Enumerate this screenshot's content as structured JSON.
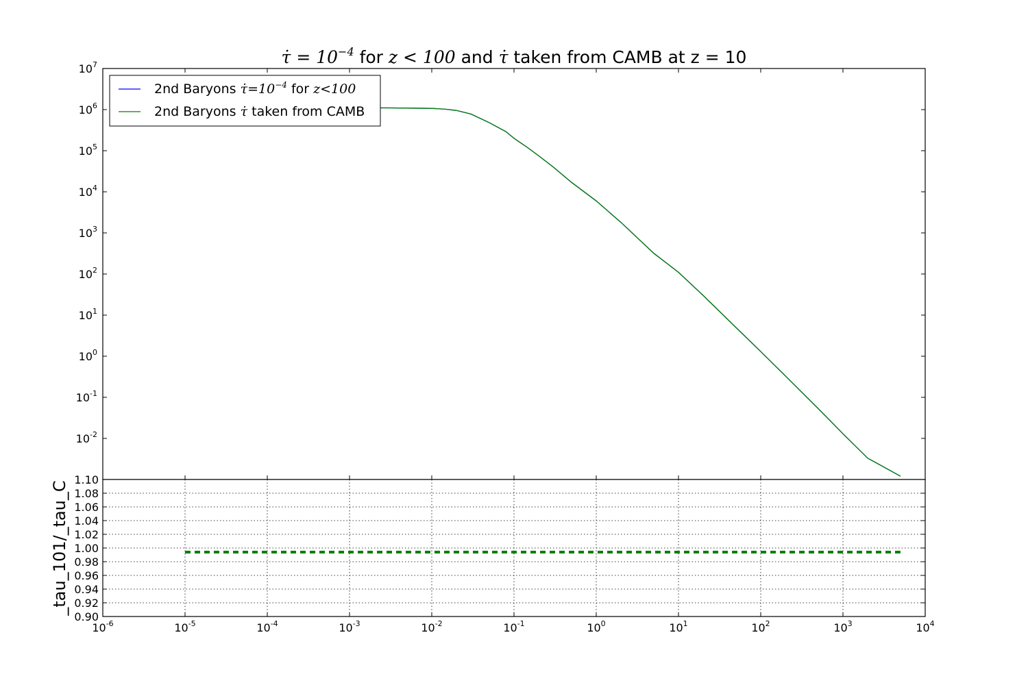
{
  "chart_data": [
    {
      "type": "line",
      "title_parts": {
        "sym": "τ̇",
        "eq": " = 10",
        "exp": "−4",
        "mid1": " for ",
        "z": "z",
        "cond": " < 100",
        "mid2": " and ",
        "sym2": "τ̇",
        "tail": "  taken from CAMB at z = 10"
      },
      "x_scale": "log",
      "y_scale": "log",
      "xlim": [
        1e-06,
        10000.0
      ],
      "ylim": [
        0.001,
        10000000.0
      ],
      "y_tick_exponents": [
        "7",
        "6",
        "5",
        "4",
        "3",
        "2",
        "1",
        "0",
        "-1",
        "-2"
      ],
      "y_tick_values": [
        10000000.0,
        1000000.0,
        100000.0,
        10000.0,
        1000.0,
        100.0,
        10,
        1,
        0.1,
        0.01
      ],
      "legend_position": "upper-left",
      "legend": [
        {
          "name_parts": {
            "a": "2nd Baryons ",
            "b": "τ̇",
            "c": "=10",
            "d": "−4",
            "e": " for ",
            "f": "z",
            "g": "<100"
          },
          "color": "#0000ff"
        },
        {
          "name_parts": {
            "a": "2nd Baryons ",
            "b": "τ̇",
            "c": " taken from CAMB"
          },
          "color": "#008000"
        }
      ],
      "series": [
        {
          "color": "#0000ff",
          "x": [
            1e-05,
            3e-05,
            0.0001,
            0.0003,
            0.001,
            0.003,
            0.005,
            0.01,
            0.015,
            0.02,
            0.03,
            0.05,
            0.08,
            0.1,
            0.15,
            0.2,
            0.3,
            0.5,
            1,
            2,
            5,
            10,
            20,
            50,
            100,
            200,
            500,
            1000,
            2000,
            5000
          ],
          "y": [
            1100000,
            1100000,
            1100000,
            1100000,
            1100000,
            1100000,
            1090000,
            1070000,
            1020000,
            950000,
            780000,
            480000,
            290000,
            200000,
            115000,
            75000,
            40000,
            17000,
            6000,
            1800,
            320,
            110,
            30,
            5,
            1.3,
            0.33,
            0.053,
            0.013,
            0.0033,
            0.0012
          ]
        },
        {
          "color": "#008000",
          "x": [
            1e-05,
            3e-05,
            0.0001,
            0.0003,
            0.001,
            0.003,
            0.005,
            0.01,
            0.015,
            0.02,
            0.03,
            0.05,
            0.08,
            0.1,
            0.15,
            0.2,
            0.3,
            0.5,
            1,
            2,
            5,
            10,
            20,
            50,
            100,
            200,
            500,
            1000,
            2000,
            5000
          ],
          "y": [
            1100000,
            1100000,
            1100000,
            1100000,
            1100000,
            1100000,
            1090000,
            1070000,
            1020000,
            950000,
            780000,
            480000,
            290000,
            200000,
            115000,
            75000,
            40000,
            17000,
            6000,
            1800,
            320,
            110,
            30,
            5,
            1.3,
            0.33,
            0.053,
            0.013,
            0.0033,
            0.0012
          ]
        }
      ]
    },
    {
      "type": "line",
      "ylabel": "_tau_101/_tau_C",
      "x_scale": "log",
      "xlim": [
        1e-06,
        10000.0
      ],
      "ylim": [
        0.9,
        1.1
      ],
      "y_ticks": [
        "1.10",
        "1.08",
        "1.06",
        "1.04",
        "1.02",
        "1.00",
        "0.98",
        "0.96",
        "0.94",
        "0.92",
        "0.90"
      ],
      "x_tick_exponents": [
        "-6",
        "-5",
        "-4",
        "-3",
        "-2",
        "-1",
        "0",
        "1",
        "2",
        "3",
        "4"
      ],
      "grid": true,
      "series": [
        {
          "color": "#008000",
          "style": "dashed",
          "x": [
            1e-05,
            5000
          ],
          "y": [
            0.994,
            0.994
          ]
        }
      ]
    }
  ]
}
